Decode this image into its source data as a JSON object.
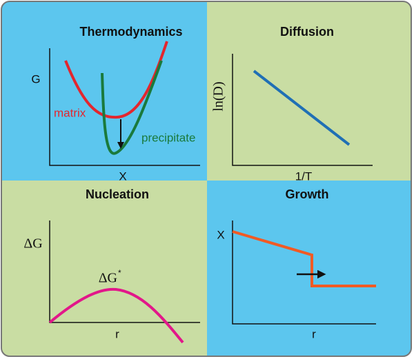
{
  "panels": [
    {
      "title": "Thermodynamics",
      "y_label": "G",
      "x_label": "X",
      "curve_labels": [
        "matrix",
        "precipitate"
      ]
    },
    {
      "title": "Diffusion",
      "y_label": "ln(D)",
      "x_label": "1/T"
    },
    {
      "title": "Nucleation",
      "y_label": "ΔG",
      "x_label": "r",
      "peak_label": "ΔG",
      "peak_label_sup": "*"
    },
    {
      "title": "Growth",
      "y_label": "X",
      "x_label": "r"
    }
  ]
}
